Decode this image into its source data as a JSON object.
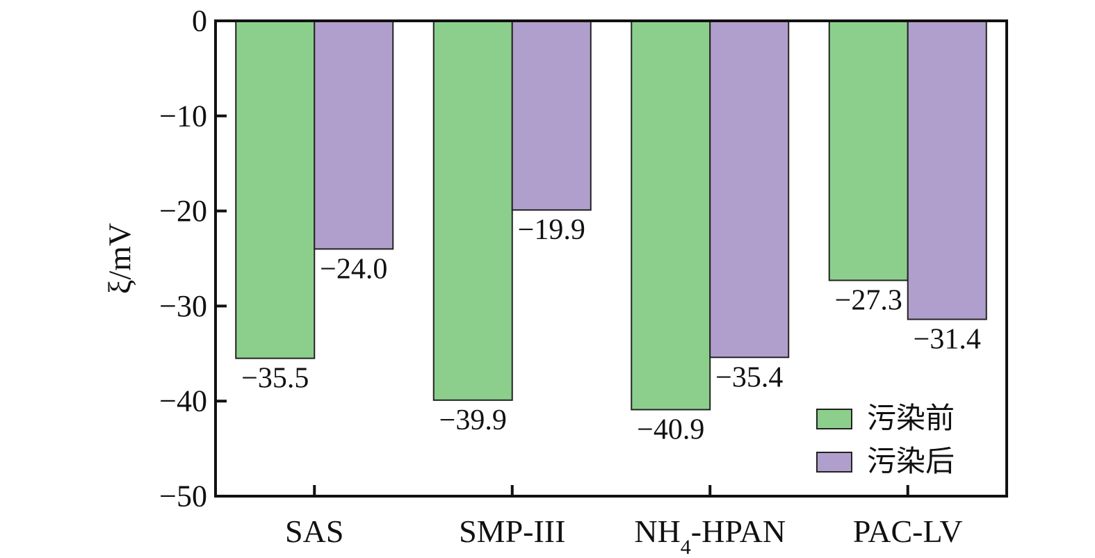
{
  "chart_data": {
    "type": "bar",
    "ylabel": "ξ/mV",
    "ylim": [
      -50,
      0
    ],
    "yticks": [
      0,
      -10,
      -20,
      -30,
      -40,
      -50
    ],
    "ytick_labels": [
      "0",
      "−10",
      "−20",
      "−30",
      "−40",
      "−50"
    ],
    "categories": [
      {
        "main": "SAS",
        "sub": "",
        "tail": ""
      },
      {
        "main": "SMP-III",
        "sub": "",
        "tail": ""
      },
      {
        "main": "NH",
        "sub": "4",
        "tail": "-HPAN"
      },
      {
        "main": "PAC-LV",
        "sub": "",
        "tail": ""
      }
    ],
    "series": [
      {
        "name": "污染前",
        "color": "#8ccf8c",
        "values": [
          -35.5,
          -39.9,
          -40.9,
          -27.3
        ],
        "labels": [
          "−35.5",
          "−39.9",
          "−40.9",
          "−27.3"
        ]
      },
      {
        "name": "污染后",
        "color": "#b09fcc",
        "values": [
          -24.0,
          -19.9,
          -35.4,
          -31.4
        ],
        "labels": [
          "−24.0",
          "−19.9",
          "−35.4",
          "−31.4"
        ]
      }
    ],
    "legend_position": "bottom-right",
    "grid": false
  }
}
